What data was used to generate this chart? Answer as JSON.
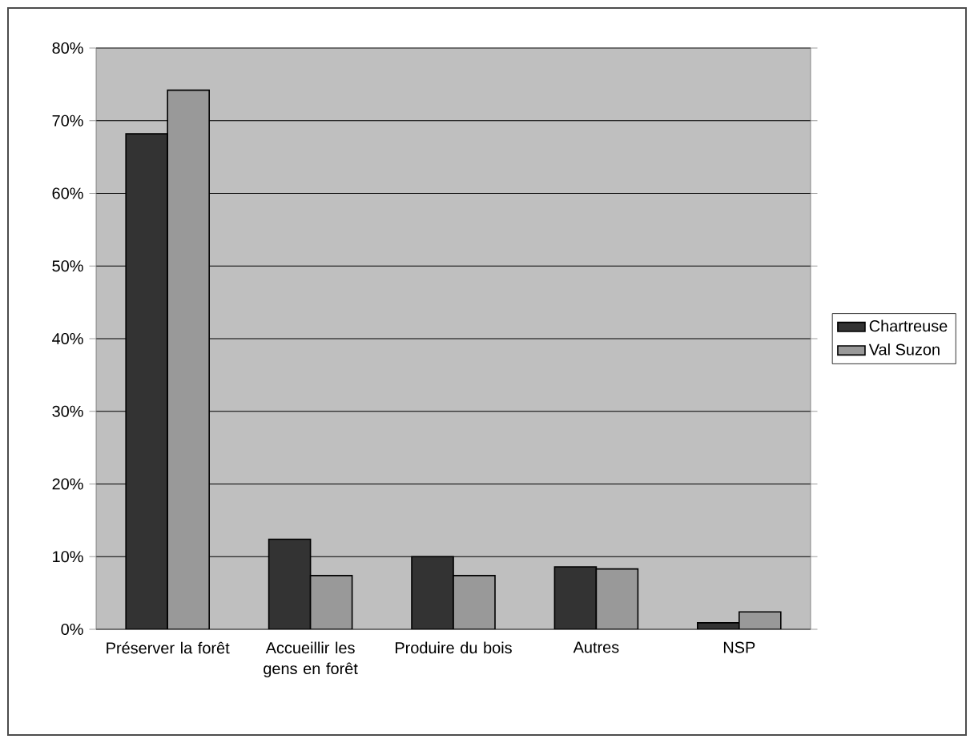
{
  "chart_data": {
    "type": "bar",
    "categories": [
      "Préserver la forêt",
      "Accueillir les gens en forêt",
      "Produire du bois",
      "Autres",
      "NSP"
    ],
    "series": [
      {
        "name": "Chartreuse",
        "color": "#333333",
        "values": [
          68.2,
          12.4,
          10.0,
          8.6,
          0.9
        ]
      },
      {
        "name": "Val Suzon",
        "color": "#999999",
        "values": [
          74.2,
          7.4,
          7.4,
          8.3,
          2.4
        ]
      }
    ],
    "ylim": [
      0,
      80
    ],
    "yticks": [
      {
        "value": 0,
        "label": "0%"
      },
      {
        "value": 10,
        "label": "10%"
      },
      {
        "value": 20,
        "label": "20%"
      },
      {
        "value": 30,
        "label": "30%"
      },
      {
        "value": 40,
        "label": "40%"
      },
      {
        "value": 50,
        "label": "50%"
      },
      {
        "value": 60,
        "label": "60%"
      },
      {
        "value": 70,
        "label": "70%"
      },
      {
        "value": 80,
        "label": "80%"
      }
    ],
    "grid": "y",
    "legend": "right"
  }
}
